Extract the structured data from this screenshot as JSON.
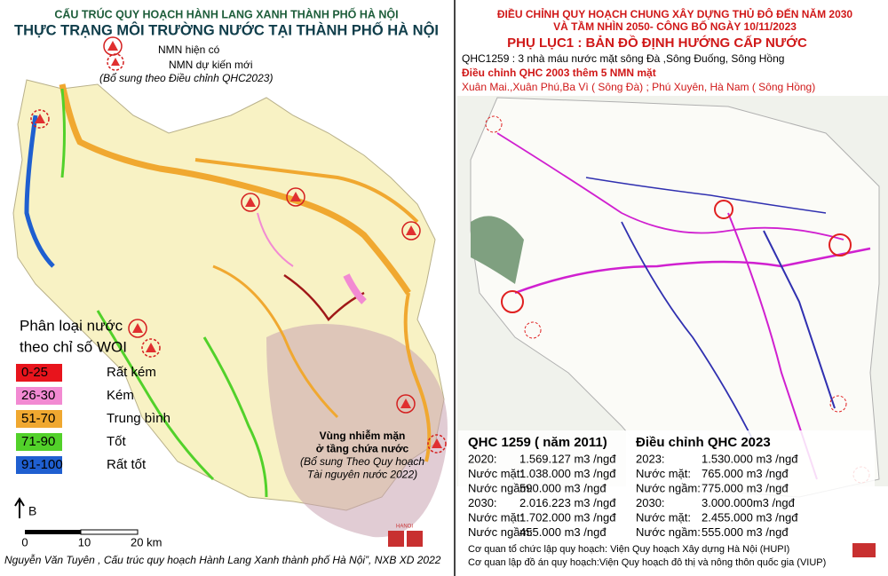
{
  "left": {
    "subtitle": "CẤU TRÚC QUY HOẠCH HÀNH LANG XANH THÀNH PHỐ HÀ NỘI",
    "title": "THỰC TRẠNG MÔI TRƯỜNG NƯỚC TẠI THÀNH PHỐ HÀ NỘI",
    "plant_legend": [
      "NMN hiện có",
      "NMN dự kiến mới",
      "(Bổ sung  theo Điều chỉnh QHC2023)"
    ],
    "legend_title": [
      "Phân loại nước",
      "theo chỉ số WOI"
    ],
    "legend": [
      {
        "range": "0-25",
        "label": "Rất kém",
        "color": "#e8141c"
      },
      {
        "range": "26-30",
        "label": "Kém",
        "color": "#f28ad2"
      },
      {
        "range": "51-70",
        "label": "Trung bình",
        "color": "#f0a830"
      },
      {
        "range": "71-90",
        "label": "Tốt",
        "color": "#52d12a"
      },
      {
        "range": "91-100",
        "label": "Rất tốt",
        "color": "#1f5fd0"
      }
    ],
    "zone_label": [
      "Vùng nhiễm mặn",
      "ở tầng chứa nước",
      "(Bổ sung Theo Quy hoạch",
      "Tài nguyên nước 2022)"
    ],
    "north": "B",
    "scale": [
      "0",
      "10",
      "20 km"
    ],
    "logo": "HANOI",
    "credit": "Nguyễn Văn Tuyên , Cấu trúc quy hoạch Hành Lang Xanh thành phố Hà Nội”,  NXB XD 2022"
  },
  "right": {
    "title": [
      "ĐIỀU CHỈNH QUY HOẠCH CHUNG XÂY DỰNG THỦ ĐÔ ĐẾN NĂM 2030",
      "VÀ TẦM NHÌN 2050- CÔNG BỐ  NGÀY 10/11/2023",
      "PHỤ LỤC1 : BẢN ĐỒ ĐỊNH HƯỚNG CẤP NƯỚC"
    ],
    "notes": [
      "QHC1259 : 3 nhà máu nước mặt sông Đà ,Sông Đuống, Sông Hồng",
      "Điều chỉnh QHC 2003 thêm 5 NMN mặt",
      "Xuân Mai.,Xuân Phú,Ba Vì ( Sông Đà) ; Phú Xuyên, Hà Nam ( Sông Hồng)"
    ],
    "table1": {
      "heading": "QHC 1259 ( năm 2011)",
      "rows": [
        [
          "2020:",
          "1.569.127 m3 /ngđ"
        ],
        [
          "Nước mặt:",
          "1.038.000 m3 /ngđ"
        ],
        [
          "Nước ngầm:",
          "590.000 m3 /ngđ"
        ],
        [
          "2030:",
          "2.016.223 m3 /ngđ"
        ],
        [
          "Nước mặt:",
          "1.702.000 m3 /ngđ"
        ],
        [
          "Nước ngầm:",
          "455.000 m3 /ngđ"
        ]
      ]
    },
    "table2": {
      "heading": "Điều chỉnh QHC 2023",
      "rows": [
        [
          "2023:",
          "1.530.000 m3 /ngđ"
        ],
        [
          "Nước mặt:",
          "765.000 m3 /ngđ"
        ],
        [
          "Nước ngầm:",
          "775.000 m3 /ngđ"
        ],
        [
          "2030:",
          "3.000.000m3 /ngđ"
        ],
        [
          "Nước mặt:",
          "2.455.000 m3 /ngđ"
        ],
        [
          "Nước ngầm:",
          "555.000 m3 /ngđ"
        ]
      ]
    },
    "agencies": [
      "Cơ quan tổ chức lập quy hoạch: Viện Quy hoạch Xây dựng Hà Nội (HUPI)",
      "Cơ quan lập đồ án quy hoạch:Viện Quy hoạch đô thị và nông thôn quốc gia (VIUP)"
    ]
  }
}
